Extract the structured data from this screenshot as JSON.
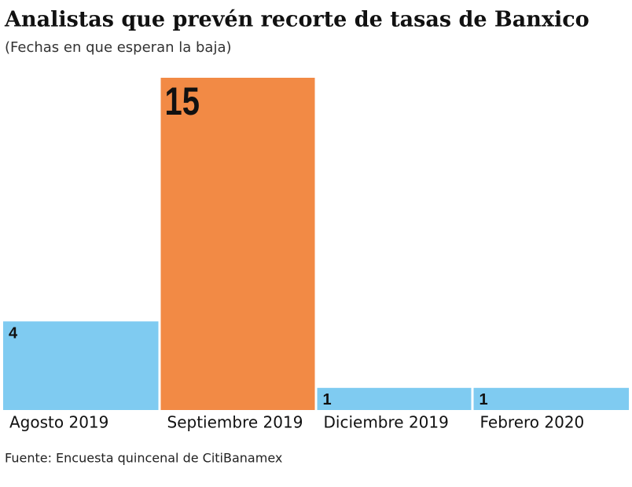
{
  "chart_data": {
    "type": "bar",
    "title": "Analistas que prevén recorte de tasas de Banxico",
    "subtitle": "(Fechas en que esperan la baja)",
    "categories": [
      "Agosto 2019",
      "Septiembre 2019",
      "Diciembre 2019",
      "Febrero 2020"
    ],
    "values": [
      4,
      15,
      1,
      1
    ],
    "colors": [
      "#7fcbf1",
      "#f28a45",
      "#7fcbf1",
      "#7fcbf1"
    ],
    "source": "Fuente: Encuesta quincenal de CitiBanamex"
  }
}
